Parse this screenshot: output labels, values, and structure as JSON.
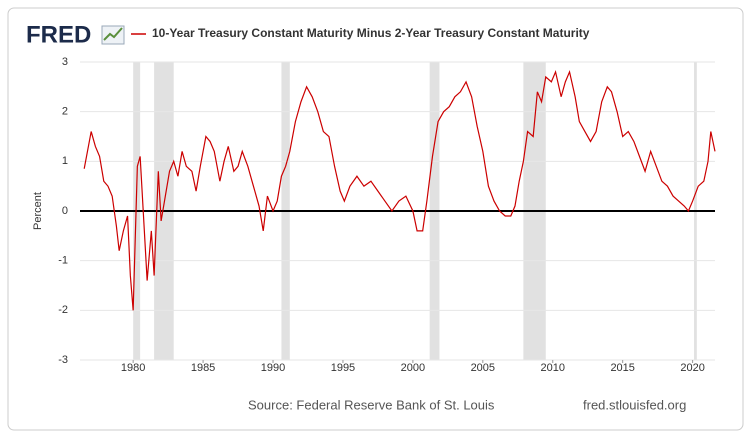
{
  "chart_data": {
    "type": "line",
    "logo": "FRED",
    "y_label": "Percent",
    "source": "Source: Federal Reserve Bank of St. Louis",
    "site": "fred.stlouisfed.org",
    "x": [
      1976.5,
      1976.8,
      1977.0,
      1977.3,
      1977.6,
      1977.9,
      1978.2,
      1978.5,
      1978.8,
      1979.0,
      1979.3,
      1979.6,
      1979.8,
      1980.0,
      1980.3,
      1980.5,
      1980.8,
      1981.0,
      1981.3,
      1981.5,
      1981.8,
      1982.0,
      1982.3,
      1982.6,
      1982.9,
      1983.2,
      1983.5,
      1983.8,
      1984.2,
      1984.5,
      1984.8,
      1985.2,
      1985.5,
      1985.8,
      1986.2,
      1986.5,
      1986.8,
      1987.2,
      1987.5,
      1987.8,
      1988.2,
      1988.6,
      1989.0,
      1989.3,
      1989.6,
      1990.0,
      1990.3,
      1990.6,
      1990.9,
      1991.2,
      1991.6,
      1992.0,
      1992.4,
      1992.8,
      1993.2,
      1993.6,
      1994.0,
      1994.4,
      1994.8,
      1995.1,
      1995.5,
      1996.0,
      1996.5,
      1997.0,
      1997.5,
      1998.0,
      1998.5,
      1999.0,
      1999.5,
      2000.0,
      2000.3,
      2000.7,
      2001.0,
      2001.4,
      2001.8,
      2002.2,
      2002.6,
      2003.0,
      2003.4,
      2003.8,
      2004.2,
      2004.6,
      2005.0,
      2005.4,
      2005.8,
      2006.2,
      2006.6,
      2007.0,
      2007.3,
      2007.6,
      2007.9,
      2008.2,
      2008.6,
      2008.9,
      2009.2,
      2009.5,
      2009.9,
      2010.2,
      2010.6,
      2010.9,
      2011.2,
      2011.6,
      2011.9,
      2012.3,
      2012.7,
      2013.1,
      2013.5,
      2013.9,
      2014.2,
      2014.6,
      2015.0,
      2015.4,
      2015.8,
      2016.2,
      2016.6,
      2017.0,
      2017.4,
      2017.8,
      2018.2,
      2018.6,
      2019.0,
      2019.4,
      2019.7,
      2020.0,
      2020.4,
      2020.8,
      2021.1,
      2021.3,
      2021.6
    ],
    "series": [
      {
        "name": "10-Year Treasury Constant Maturity Minus 2-Year Treasury Constant Maturity",
        "color": "#cc0000",
        "values": [
          0.85,
          1.3,
          1.6,
          1.3,
          1.1,
          0.6,
          0.5,
          0.3,
          -0.3,
          -0.8,
          -0.4,
          -0.1,
          -1.3,
          -2.0,
          0.9,
          1.1,
          -0.4,
          -1.4,
          -0.4,
          -1.3,
          0.8,
          -0.2,
          0.3,
          0.8,
          1.0,
          0.7,
          1.2,
          0.9,
          0.8,
          0.4,
          0.9,
          1.5,
          1.4,
          1.2,
          0.6,
          1.0,
          1.3,
          0.8,
          0.9,
          1.2,
          0.9,
          0.5,
          0.1,
          -0.4,
          0.3,
          0.0,
          0.2,
          0.7,
          0.9,
          1.2,
          1.8,
          2.2,
          2.5,
          2.3,
          2.0,
          1.6,
          1.5,
          0.9,
          0.4,
          0.2,
          0.5,
          0.7,
          0.5,
          0.6,
          0.4,
          0.2,
          0.0,
          0.2,
          0.3,
          0.0,
          -0.4,
          -0.4,
          0.2,
          1.1,
          1.8,
          2.0,
          2.1,
          2.3,
          2.4,
          2.6,
          2.3,
          1.7,
          1.2,
          0.5,
          0.2,
          0.0,
          -0.1,
          -0.1,
          0.1,
          0.6,
          1.0,
          1.6,
          1.5,
          2.4,
          2.2,
          2.7,
          2.6,
          2.8,
          2.3,
          2.6,
          2.8,
          2.3,
          1.8,
          1.6,
          1.4,
          1.6,
          2.2,
          2.5,
          2.4,
          2.0,
          1.5,
          1.6,
          1.4,
          1.1,
          0.8,
          1.2,
          0.9,
          0.6,
          0.5,
          0.3,
          0.2,
          0.1,
          0.0,
          0.2,
          0.5,
          0.6,
          1.0,
          1.6,
          1.2
        ]
      }
    ],
    "shaded_periods": [
      [
        1980.0,
        1980.5
      ],
      [
        1981.5,
        1982.9
      ],
      [
        1990.6,
        1991.2
      ],
      [
        2001.2,
        2001.9
      ],
      [
        2007.9,
        2009.5
      ],
      [
        2020.1,
        2020.3
      ]
    ],
    "shade_color": "#e1e1e1",
    "xlim": [
      1976.2,
      2021.6
    ],
    "xticks": [
      1980,
      1985,
      1990,
      1995,
      2000,
      2005,
      2010,
      2015,
      2020
    ],
    "ylim": [
      -3,
      3
    ],
    "yticks": [
      -3,
      -2,
      -1,
      0,
      1,
      2,
      3
    ],
    "grid": true
  }
}
